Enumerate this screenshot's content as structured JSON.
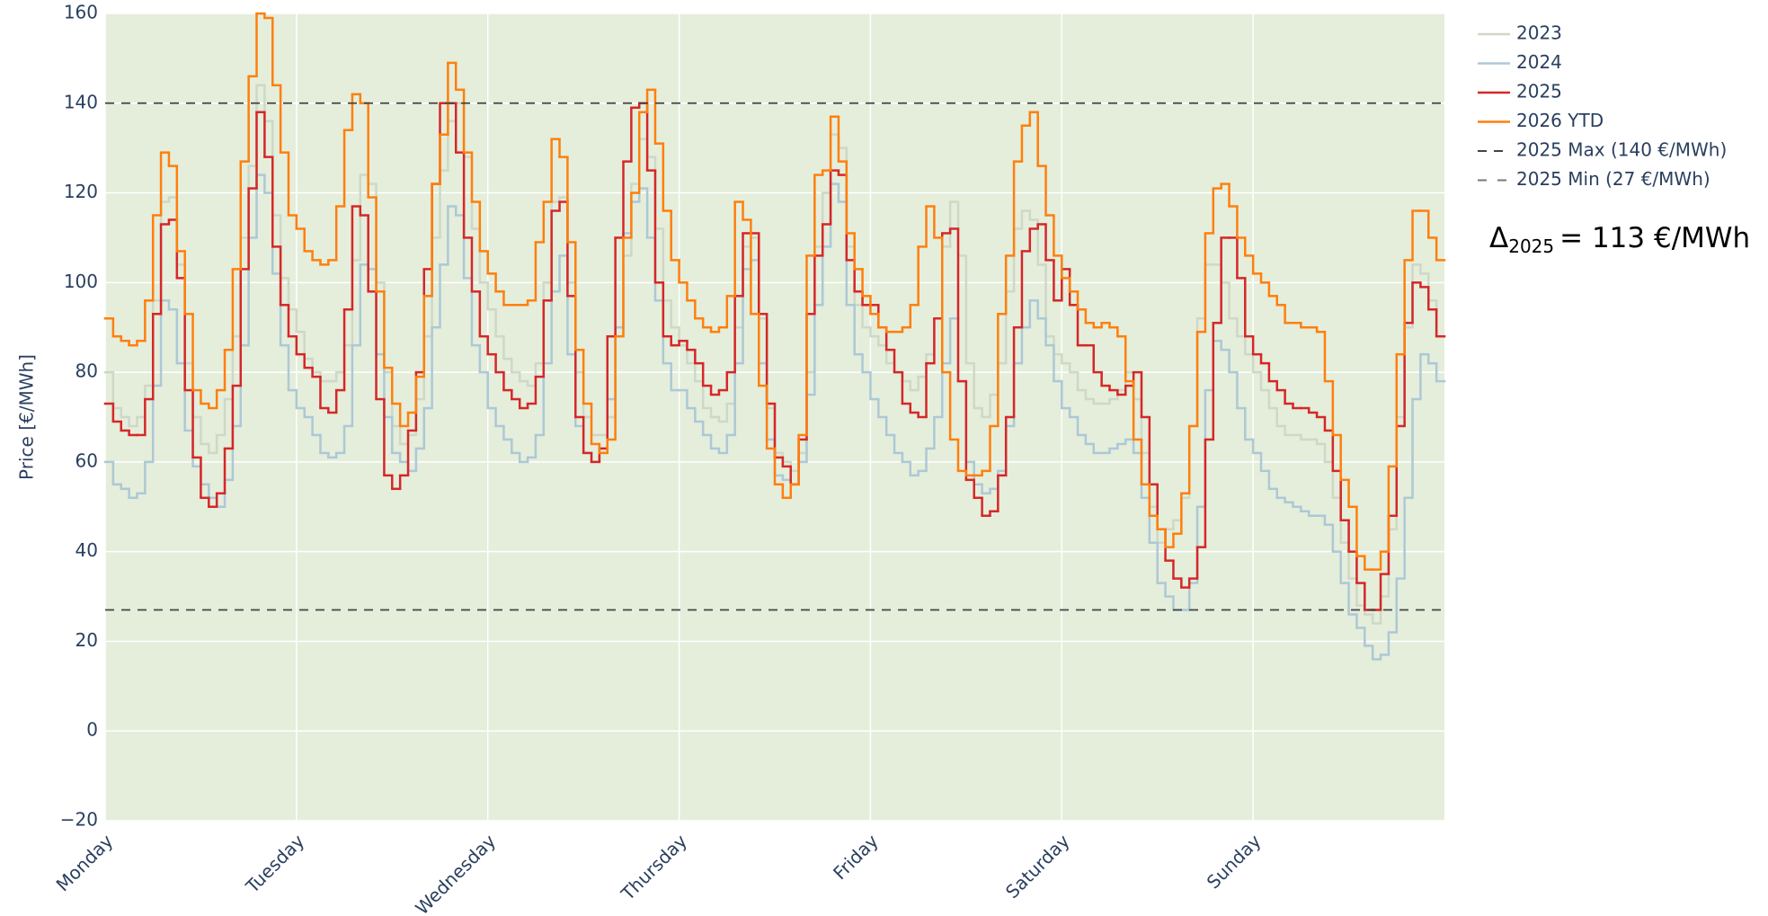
{
  "chart_data": {
    "type": "step",
    "y_label": "Price [€/MWh]",
    "xlim": [
      0,
      168
    ],
    "ylim": [
      -20,
      160
    ],
    "xticks": [
      {
        "value": 0,
        "label": "Monday"
      },
      {
        "value": 24,
        "label": "Tuesday"
      },
      {
        "value": 48,
        "label": "Wednesday"
      },
      {
        "value": 72,
        "label": "Thursday"
      },
      {
        "value": 96,
        "label": "Friday"
      },
      {
        "value": 120,
        "label": "Saturday"
      },
      {
        "value": 144,
        "label": "Sunday"
      }
    ],
    "yticks": [
      {
        "value": -20,
        "label": "−20"
      },
      0,
      20,
      40,
      60,
      80,
      100,
      120,
      140,
      160
    ],
    "grid": true,
    "legend": "right",
    "x": [
      0,
      1,
      2,
      3,
      4,
      5,
      6,
      7,
      8,
      9,
      10,
      11,
      12,
      13,
      14,
      15,
      16,
      17,
      18,
      19,
      20,
      21,
      22,
      23,
      24,
      25,
      26,
      27,
      28,
      29,
      30,
      31,
      32,
      33,
      34,
      35,
      36,
      37,
      38,
      39,
      40,
      41,
      42,
      43,
      44,
      45,
      46,
      47,
      48,
      49,
      50,
      51,
      52,
      53,
      54,
      55,
      56,
      57,
      58,
      59,
      60,
      61,
      62,
      63,
      64,
      65,
      66,
      67,
      68,
      69,
      70,
      71,
      72,
      73,
      74,
      75,
      76,
      77,
      78,
      79,
      80,
      81,
      82,
      83,
      84,
      85,
      86,
      87,
      88,
      89,
      90,
      91,
      92,
      93,
      94,
      95,
      96,
      97,
      98,
      99,
      100,
      101,
      102,
      103,
      104,
      105,
      106,
      107,
      108,
      109,
      110,
      111,
      112,
      113,
      114,
      115,
      116,
      117,
      118,
      119,
      120,
      121,
      122,
      123,
      124,
      125,
      126,
      127,
      128,
      129,
      130,
      131,
      132,
      133,
      134,
      135,
      136,
      137,
      138,
      139,
      140,
      141,
      142,
      143,
      144,
      145,
      146,
      147,
      148,
      149,
      150,
      151,
      152,
      153,
      154,
      155,
      156,
      157,
      158,
      159,
      160,
      161,
      162,
      163,
      164,
      165,
      166,
      167
    ],
    "series": [
      {
        "name": "2023",
        "color": "#cfd8c6",
        "values": [
          80,
          72,
          70,
          68,
          70,
          77,
          96,
          118,
          119,
          104,
          82,
          70,
          64,
          62,
          66,
          74,
          88,
          110,
          126,
          144,
          136,
          115,
          101,
          94,
          89,
          83,
          80,
          78,
          78,
          80,
          86,
          105,
          124,
          122,
          100,
          80,
          68,
          64,
          66,
          74,
          88,
          110,
          125,
          136,
          140,
          128,
          112,
          100,
          94,
          88,
          83,
          80,
          78,
          77,
          82,
          100,
          118,
          119,
          100,
          80,
          70,
          66,
          66,
          70,
          88,
          106,
          122,
          132,
          128,
          112,
          96,
          90,
          86,
          82,
          78,
          72,
          70,
          69,
          73,
          90,
          108,
          110,
          92,
          72,
          62,
          60,
          58,
          62,
          80,
          108,
          120,
          133,
          130,
          108,
          95,
          90,
          88,
          86,
          82,
          80,
          78,
          76,
          79,
          84,
          92,
          108,
          118,
          106,
          82,
          72,
          70,
          75,
          82,
          98,
          112,
          116,
          114,
          104,
          88,
          84,
          82,
          80,
          76,
          74,
          73,
          73,
          74,
          76,
          80,
          74,
          62,
          50,
          42,
          45,
          47,
          52,
          68,
          92,
          104,
          104,
          100,
          92,
          88,
          84,
          80,
          76,
          72,
          68,
          66,
          66,
          65,
          65,
          64,
          60,
          52,
          42,
          34,
          28,
          26,
          24,
          30,
          45,
          70,
          90,
          104,
          102,
          96,
          88
        ]
      },
      {
        "name": "2024",
        "color": "#adc8d6",
        "values": [
          60,
          55,
          54,
          52,
          53,
          60,
          77,
          96,
          94,
          82,
          67,
          59,
          55,
          52,
          50,
          56,
          68,
          86,
          110,
          124,
          120,
          102,
          86,
          76,
          72,
          70,
          66,
          62,
          61,
          62,
          68,
          86,
          104,
          103,
          84,
          70,
          62,
          60,
          58,
          63,
          72,
          90,
          104,
          117,
          115,
          101,
          86,
          80,
          72,
          68,
          65,
          62,
          60,
          61,
          66,
          82,
          98,
          106,
          84,
          68,
          62,
          60,
          62,
          74,
          90,
          111,
          118,
          121,
          110,
          96,
          82,
          76,
          76,
          72,
          69,
          66,
          63,
          62,
          66,
          82,
          103,
          105,
          82,
          65,
          57,
          56,
          55,
          60,
          75,
          95,
          108,
          122,
          118,
          95,
          84,
          80,
          74,
          70,
          66,
          62,
          60,
          57,
          58,
          63,
          70,
          82,
          92,
          78,
          60,
          55,
          53,
          54,
          58,
          68,
          82,
          90,
          96,
          92,
          86,
          78,
          72,
          70,
          66,
          64,
          62,
          62,
          63,
          64,
          65,
          62,
          52,
          42,
          33,
          30,
          27,
          27,
          33,
          50,
          76,
          87,
          85,
          80,
          72,
          65,
          62,
          58,
          54,
          52,
          51,
          50,
          49,
          48,
          48,
          46,
          40,
          33,
          26,
          23,
          19,
          16,
          17,
          22,
          34,
          52,
          74,
          84,
          82,
          78
        ]
      },
      {
        "name": "2025",
        "color": "#d62728",
        "values": [
          73,
          69,
          67,
          66,
          66,
          74,
          93,
          113,
          114,
          101,
          76,
          61,
          52,
          50,
          53,
          63,
          77,
          103,
          121,
          138,
          128,
          108,
          95,
          88,
          84,
          81,
          79,
          72,
          71,
          76,
          94,
          117,
          115,
          98,
          74,
          57,
          54,
          57,
          67,
          80,
          103,
          122,
          140,
          140,
          129,
          110,
          98,
          88,
          84,
          80,
          76,
          74,
          72,
          73,
          79,
          96,
          116,
          118,
          97,
          70,
          62,
          60,
          63,
          88,
          110,
          127,
          139,
          140,
          125,
          100,
          88,
          86,
          87,
          85,
          82,
          77,
          75,
          76,
          80,
          97,
          111,
          111,
          93,
          73,
          61,
          59,
          55,
          65,
          93,
          106,
          113,
          125,
          124,
          105,
          98,
          95,
          95,
          90,
          85,
          80,
          73,
          71,
          70,
          82,
          92,
          111,
          112,
          78,
          56,
          52,
          48,
          49,
          57,
          70,
          90,
          107,
          112,
          113,
          105,
          96,
          103,
          95,
          86,
          86,
          80,
          77,
          76,
          75,
          77,
          80,
          70,
          55,
          45,
          38,
          34,
          32,
          34,
          41,
          65,
          91,
          110,
          110,
          101,
          88,
          84,
          82,
          78,
          76,
          73,
          72,
          72,
          71,
          70,
          67,
          58,
          47,
          40,
          33,
          27,
          27,
          35,
          48,
          68,
          91,
          100,
          99,
          94,
          88
        ]
      },
      {
        "name": "2026 YTD",
        "color": "#ff7f0e",
        "values": [
          92,
          88,
          87,
          86,
          87,
          96,
          115,
          129,
          126,
          107,
          93,
          76,
          73,
          72,
          76,
          85,
          103,
          127,
          146,
          160,
          159,
          144,
          129,
          115,
          112,
          107,
          105,
          104,
          105,
          117,
          134,
          142,
          140,
          119,
          98,
          81,
          73,
          68,
          71,
          79,
          97,
          122,
          133,
          149,
          143,
          129,
          118,
          107,
          102,
          98,
          95,
          95,
          95,
          96,
          109,
          118,
          132,
          128,
          109,
          85,
          73,
          64,
          62,
          65,
          88,
          110,
          120,
          138,
          143,
          131,
          116,
          105,
          100,
          96,
          92,
          90,
          89,
          90,
          97,
          118,
          114,
          93,
          77,
          63,
          55,
          52,
          55,
          66,
          106,
          124,
          125,
          137,
          127,
          111,
          103,
          97,
          93,
          90,
          89,
          89,
          90,
          95,
          108,
          117,
          110,
          80,
          65,
          58,
          57,
          57,
          58,
          68,
          93,
          106,
          127,
          135,
          138,
          126,
          115,
          106,
          101,
          98,
          94,
          91,
          90,
          91,
          90,
          88,
          78,
          65,
          55,
          48,
          45,
          41,
          44,
          53,
          68,
          89,
          111,
          121,
          122,
          117,
          110,
          106,
          102,
          100,
          97,
          95,
          91,
          91,
          90,
          90,
          89,
          78,
          66,
          56,
          50,
          39,
          36,
          36,
          40,
          59,
          84,
          105,
          116,
          116,
          110,
          105
        ]
      }
    ],
    "hlines": [
      {
        "name": "2025 Max (140 €/MWh)",
        "value": 140,
        "color": "#444444"
      },
      {
        "name": "2025 Min (27 €/MWh)",
        "value": 27,
        "color": "#777777"
      }
    ],
    "annotation": {
      "symbol": "Δ",
      "subscript": "2025",
      "text": "= 113 €/MWh"
    }
  }
}
